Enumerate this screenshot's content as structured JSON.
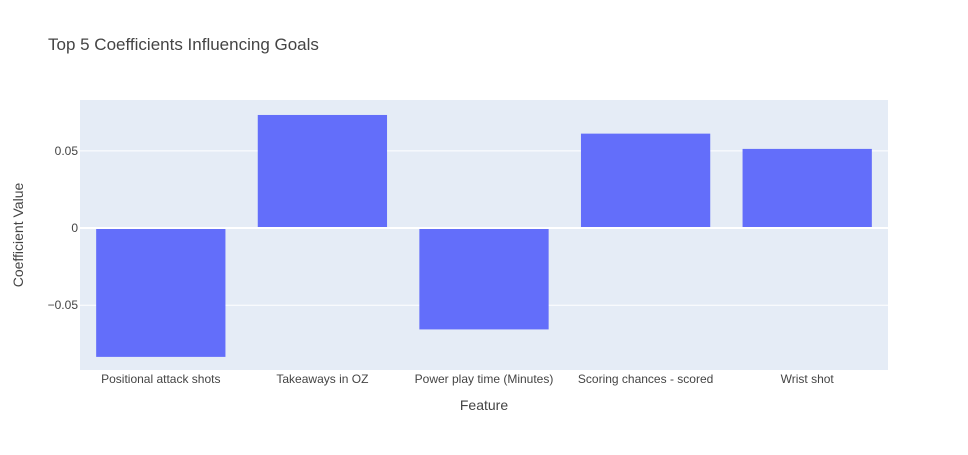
{
  "chart_data": {
    "type": "bar",
    "title": "Top 5 Coefficients Influencing Goals",
    "xlabel": "Feature",
    "ylabel": "Coefficient Value",
    "categories": [
      "Positional attack shots",
      "Takeaways in OZ",
      "Power play time (Minutes)",
      "Scoring chances - scored",
      "Wrist shot"
    ],
    "values": [
      -0.0835,
      0.0733,
      -0.0657,
      0.0612,
      0.0513
    ],
    "ylim": [
      -0.092,
      0.083
    ],
    "yticks": [
      -0.05,
      0,
      0.05
    ],
    "ytick_labels": [
      "−0.05",
      "0",
      "0.05"
    ],
    "grid": true,
    "legend": "none",
    "colors": {
      "bar": "#636efa",
      "plot_bg": "#e5ecf6",
      "grid": "#ffffff",
      "text": "#444444"
    }
  }
}
